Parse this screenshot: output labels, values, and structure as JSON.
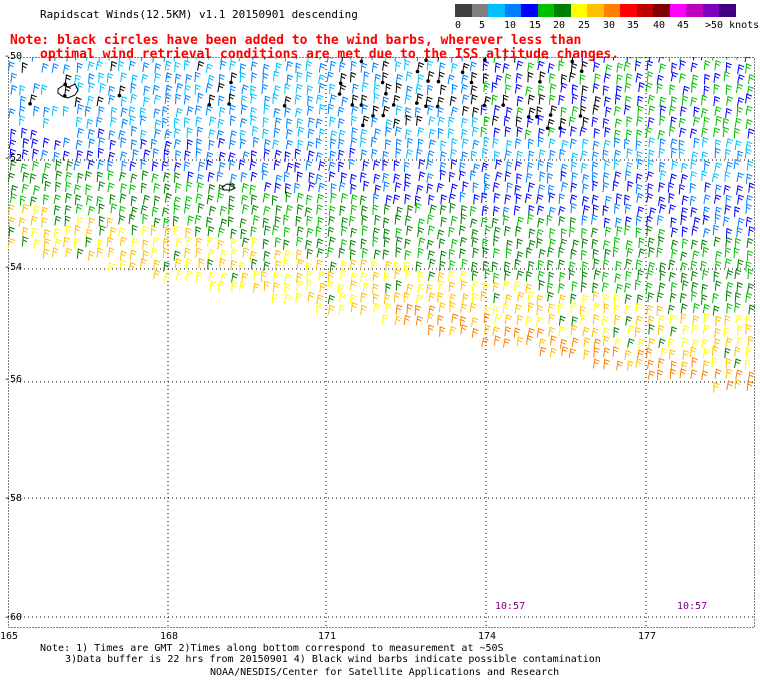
{
  "title": "Rapidscat Winds(12.5KM) v1.1 20150901 descending",
  "note": {
    "line1": "Note: black circles have been added to the wind barbs, wherever less than",
    "line2": "optimal wind retrieval conditions are met due to the ISS altitude changes."
  },
  "legend": {
    "labels": [
      "0",
      "5",
      "10",
      "15",
      "20",
      "25",
      "30",
      "35",
      "40",
      "45",
      ">50 knots"
    ],
    "colors": [
      "#404040",
      "#7f7f7f",
      "#00bfff",
      "#0080ff",
      "#0000ff",
      "#00c000",
      "#008000",
      "#ffff00",
      "#ffc000",
      "#ff8000",
      "#ff0000",
      "#c00000",
      "#800000",
      "#ff00ff",
      "#c000c0",
      "#8000c0",
      "#400080"
    ]
  },
  "map": {
    "lat_labels": [
      "-50",
      "-52",
      "-54",
      "-56",
      "-58",
      "-60"
    ],
    "lon_labels": [
      "165",
      "168",
      "171",
      "174",
      "177"
    ],
    "time_labels": [
      "10:57",
      "10:57"
    ]
  },
  "footer": {
    "line1": "Note: 1) Times are GMT 2)Times along bottom correspond to measurement at ~50S",
    "line2": "3)Data buffer is 22 hrs from 20150901 4) Black wind barbs indicate possible contamination",
    "line3": "NOAA/NESDIS/Center for Satellite Applications and Research"
  }
}
